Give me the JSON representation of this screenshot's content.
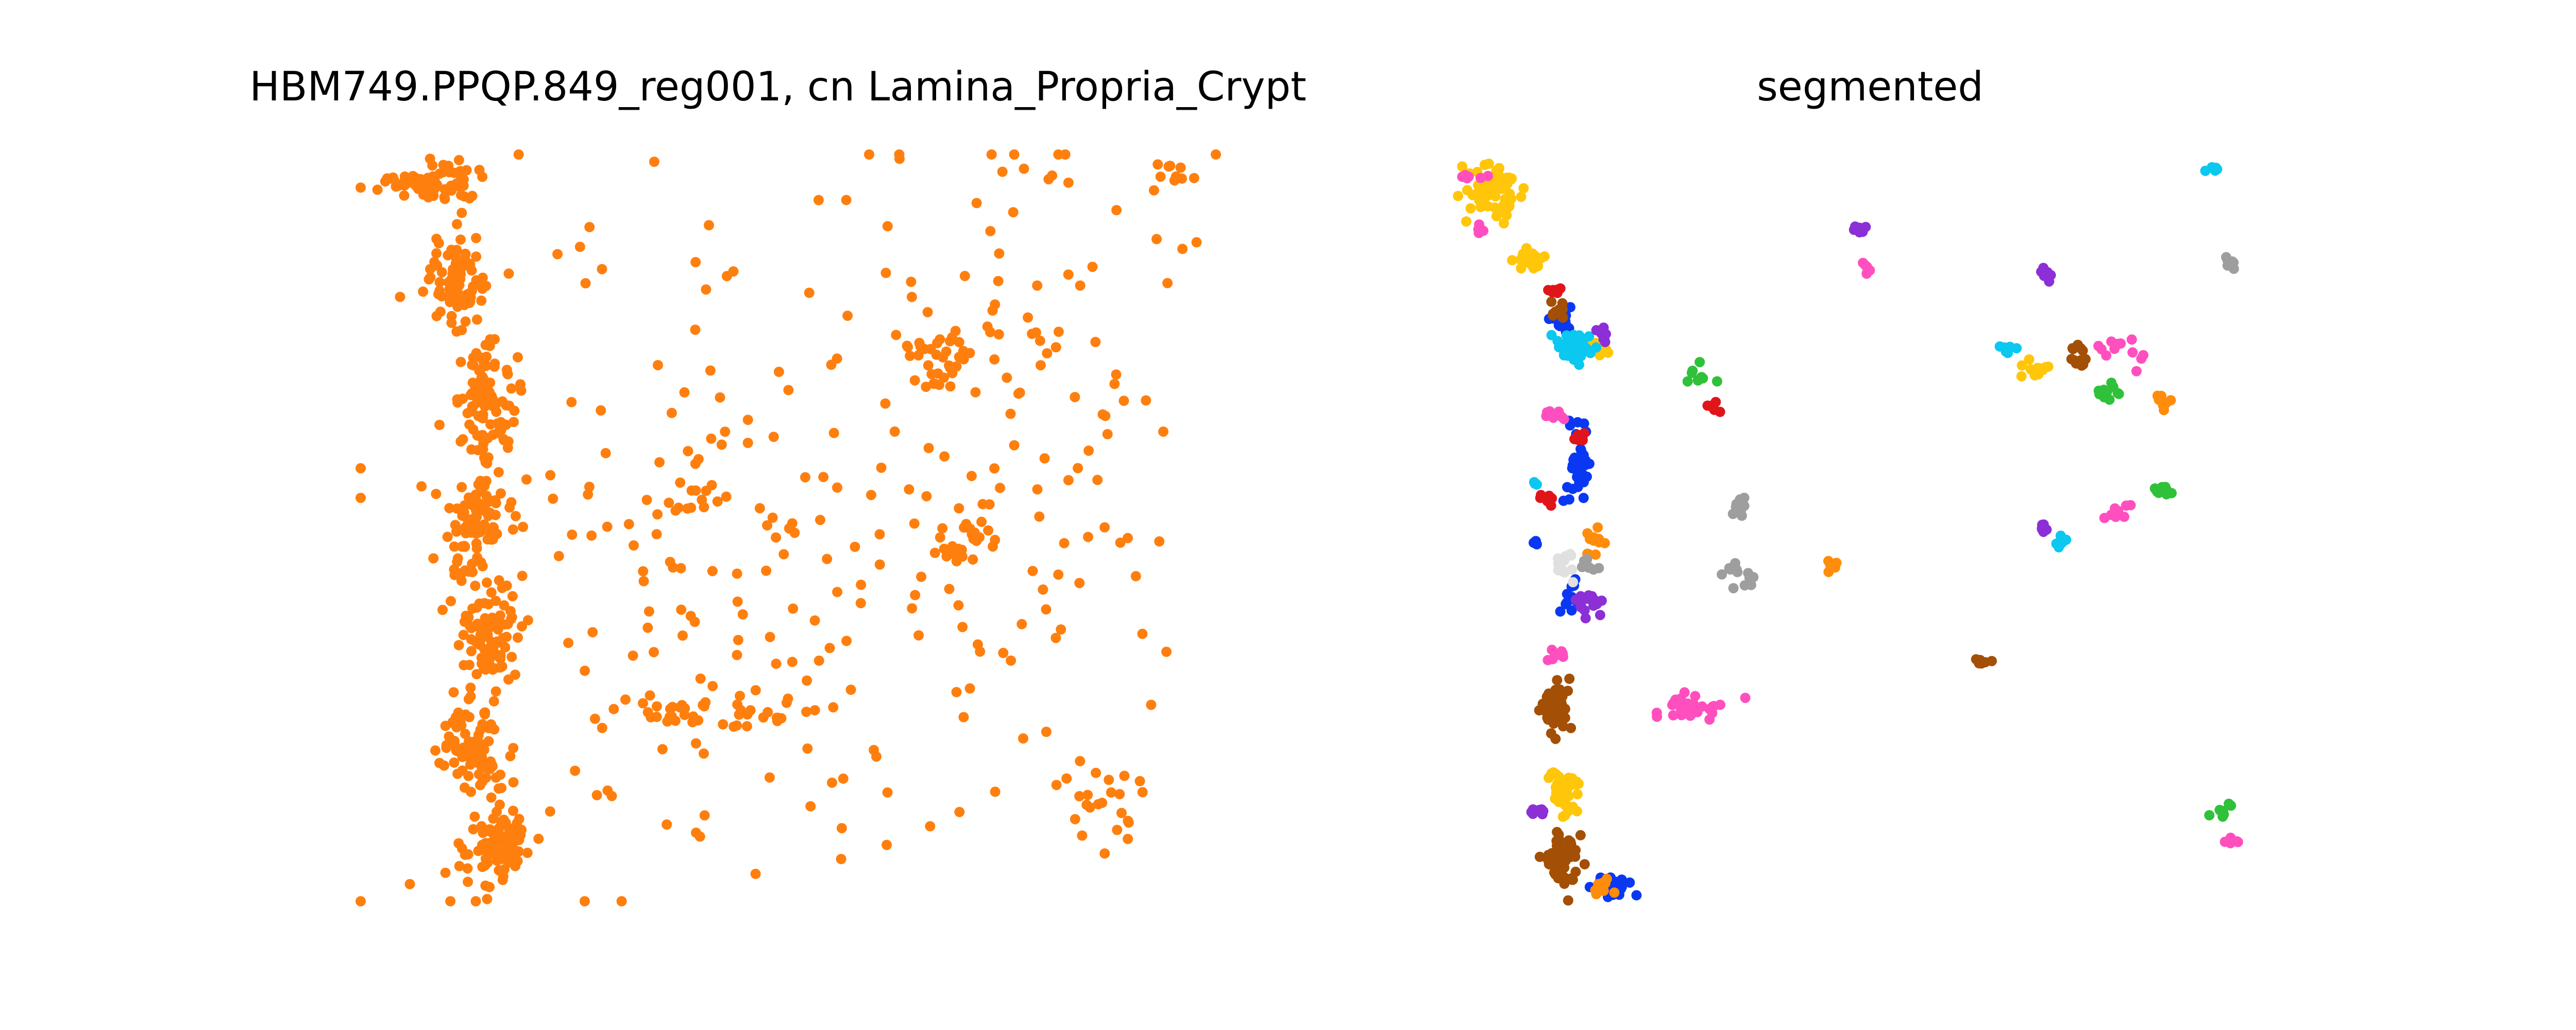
{
  "chart_data": [
    {
      "type": "scatter",
      "title": "HBM749.PPQP.849_reg001, cn Lamina_Propria_Crypt",
      "xlabel": "",
      "ylabel": "",
      "axes_visible": false,
      "point_color": "#ff7f0e",
      "clusters": [
        {
          "center": [
            0.08,
            0.04
          ],
          "spread": [
            0.04,
            0.02
          ],
          "n": 90
        },
        {
          "center": [
            0.11,
            0.17
          ],
          "spread": [
            0.03,
            0.05
          ],
          "n": 80
        },
        {
          "center": [
            0.15,
            0.33
          ],
          "spread": [
            0.03,
            0.06
          ],
          "n": 90
        },
        {
          "center": [
            0.14,
            0.5
          ],
          "spread": [
            0.03,
            0.06
          ],
          "n": 90
        },
        {
          "center": [
            0.15,
            0.64
          ],
          "spread": [
            0.03,
            0.06
          ],
          "n": 80
        },
        {
          "center": [
            0.13,
            0.8
          ],
          "spread": [
            0.03,
            0.06
          ],
          "n": 90
        },
        {
          "center": [
            0.16,
            0.93
          ],
          "spread": [
            0.035,
            0.04
          ],
          "n": 90
        },
        {
          "center": [
            0.38,
            0.46
          ],
          "spread": [
            0.03,
            0.025
          ],
          "n": 14
        },
        {
          "center": [
            0.41,
            0.75
          ],
          "spread": [
            0.12,
            0.02
          ],
          "n": 40
        },
        {
          "center": [
            0.68,
            0.27
          ],
          "spread": [
            0.05,
            0.04
          ],
          "n": 30
        },
        {
          "center": [
            0.71,
            0.52
          ],
          "spread": [
            0.03,
            0.03
          ],
          "n": 22
        },
        {
          "center": [
            0.87,
            0.86
          ],
          "spread": [
            0.05,
            0.04
          ],
          "n": 24
        },
        {
          "center": [
            0.42,
            0.5
          ],
          "spread": [
            0.3,
            0.42
          ],
          "n": 190
        },
        {
          "center": [
            0.78,
            0.35
          ],
          "spread": [
            0.16,
            0.35
          ],
          "n": 110
        },
        {
          "center": [
            0.95,
            0.03
          ],
          "spread": [
            0.04,
            0.02
          ],
          "n": 10
        }
      ]
    },
    {
      "type": "scatter",
      "title": "segmented",
      "xlabel": "",
      "ylabel": "",
      "axes_visible": false,
      "clusters": [
        {
          "center": [
            0.05,
            0.05
          ],
          "spread": [
            0.03,
            0.03
          ],
          "n": 60,
          "color": "#ffc60a"
        },
        {
          "center": [
            0.09,
            0.14
          ],
          "spread": [
            0.02,
            0.01
          ],
          "n": 25,
          "color": "#ffc60a"
        },
        {
          "center": [
            0.17,
            0.26
          ],
          "spread": [
            0.012,
            0.01
          ],
          "n": 12,
          "color": "#ffc60a"
        },
        {
          "center": [
            0.13,
            0.23
          ],
          "spread": [
            0.012,
            0.012
          ],
          "n": 14,
          "color": "#0a38f2"
        },
        {
          "center": [
            0.15,
            0.41
          ],
          "spread": [
            0.012,
            0.05
          ],
          "n": 40,
          "color": "#0a38f2"
        },
        {
          "center": [
            0.14,
            0.6
          ],
          "spread": [
            0.012,
            0.02
          ],
          "n": 12,
          "color": "#0a38f2"
        },
        {
          "center": [
            0.19,
            0.98
          ],
          "spread": [
            0.015,
            0.012
          ],
          "n": 30,
          "color": "#0a38f2"
        },
        {
          "center": [
            0.14,
            0.26
          ],
          "spread": [
            0.02,
            0.02
          ],
          "n": 40,
          "color": "#0ac8f0"
        },
        {
          "center": [
            0.13,
            0.85
          ],
          "spread": [
            0.015,
            0.03
          ],
          "n": 45,
          "color": "#ffc60a"
        },
        {
          "center": [
            0.12,
            0.74
          ],
          "spread": [
            0.015,
            0.03
          ],
          "n": 50,
          "color": "#a34f05"
        },
        {
          "center": [
            0.13,
            0.94
          ],
          "spread": [
            0.018,
            0.03
          ],
          "n": 60,
          "color": "#a34f05"
        },
        {
          "center": [
            0.12,
            0.21
          ],
          "spread": [
            0.012,
            0.01
          ],
          "n": 10,
          "color": "#a34f05"
        },
        {
          "center": [
            0.13,
            0.55
          ],
          "spread": [
            0.015,
            0.015
          ],
          "n": 14,
          "color": "#e0e0e0"
        },
        {
          "center": [
            0.17,
            0.52
          ],
          "spread": [
            0.012,
            0.015
          ],
          "n": 14,
          "color": "#ff8c0a"
        },
        {
          "center": [
            0.18,
            0.98
          ],
          "spread": [
            0.012,
            0.008
          ],
          "n": 10,
          "color": "#ff8c0a"
        },
        {
          "center": [
            0.11,
            0.46
          ],
          "spread": [
            0.01,
            0.008
          ],
          "n": 8,
          "color": "#e0151a"
        },
        {
          "center": [
            0.15,
            0.38
          ],
          "spread": [
            0.008,
            0.008
          ],
          "n": 6,
          "color": "#e0151a"
        },
        {
          "center": [
            0.12,
            0.18
          ],
          "spread": [
            0.008,
            0.006
          ],
          "n": 6,
          "color": "#e0151a"
        },
        {
          "center": [
            0.31,
            0.34
          ],
          "spread": [
            0.008,
            0.008
          ],
          "n": 6,
          "color": "#e0151a"
        },
        {
          "center": [
            0.16,
            0.6
          ],
          "spread": [
            0.015,
            0.02
          ],
          "n": 16,
          "color": "#8c2fd6"
        },
        {
          "center": [
            0.18,
            0.24
          ],
          "spread": [
            0.006,
            0.012
          ],
          "n": 8,
          "color": "#8c2fd6"
        },
        {
          "center": [
            0.1,
            0.88
          ],
          "spread": [
            0.01,
            0.006
          ],
          "n": 8,
          "color": "#8c2fd6"
        },
        {
          "center": [
            0.02,
            0.03
          ],
          "spread": [
            0.012,
            0.006
          ],
          "n": 8,
          "color": "#ff4fbf"
        },
        {
          "center": [
            0.03,
            0.1
          ],
          "spread": [
            0.008,
            0.006
          ],
          "n": 6,
          "color": "#ff4fbf"
        },
        {
          "center": [
            0.12,
            0.35
          ],
          "spread": [
            0.01,
            0.008
          ],
          "n": 8,
          "color": "#ff4fbf"
        },
        {
          "center": [
            0.12,
            0.67
          ],
          "spread": [
            0.01,
            0.008
          ],
          "n": 8,
          "color": "#ff4fbf"
        },
        {
          "center": [
            0.28,
            0.74
          ],
          "spread": [
            0.04,
            0.015
          ],
          "n": 30,
          "color": "#ff4fbf"
        },
        {
          "center": [
            0.29,
            0.3
          ],
          "spread": [
            0.01,
            0.01
          ],
          "n": 8,
          "color": "#2fc13a"
        },
        {
          "center": [
            0.34,
            0.47
          ],
          "spread": [
            0.01,
            0.01
          ],
          "n": 12,
          "color": "#9e9e9e"
        },
        {
          "center": [
            0.34,
            0.56
          ],
          "spread": [
            0.015,
            0.015
          ],
          "n": 12,
          "color": "#9e9e9e"
        },
        {
          "center": [
            0.16,
            0.55
          ],
          "spread": [
            0.008,
            0.008
          ],
          "n": 8,
          "color": "#9e9e9e"
        },
        {
          "center": [
            0.48,
            0.1
          ],
          "spread": [
            0.01,
            0.006
          ],
          "n": 8,
          "color": "#8c2fd6"
        },
        {
          "center": [
            0.49,
            0.15
          ],
          "spread": [
            0.006,
            0.008
          ],
          "n": 6,
          "color": "#ff4fbf"
        },
        {
          "center": [
            0.45,
            0.55
          ],
          "spread": [
            0.006,
            0.006
          ],
          "n": 6,
          "color": "#ff8c0a"
        },
        {
          "center": [
            0.62,
            0.68
          ],
          "spread": [
            0.008,
            0.005
          ],
          "n": 6,
          "color": "#a34f05"
        },
        {
          "center": [
            0.7,
            0.16
          ],
          "spread": [
            0.008,
            0.008
          ],
          "n": 8,
          "color": "#8c2fd6"
        },
        {
          "center": [
            0.66,
            0.26
          ],
          "spread": [
            0.01,
            0.006
          ],
          "n": 8,
          "color": "#0ac8f0"
        },
        {
          "center": [
            0.69,
            0.29
          ],
          "spread": [
            0.025,
            0.008
          ],
          "n": 14,
          "color": "#ffc60a"
        },
        {
          "center": [
            0.74,
            0.27
          ],
          "spread": [
            0.012,
            0.012
          ],
          "n": 12,
          "color": "#a34f05"
        },
        {
          "center": [
            0.79,
            0.26
          ],
          "spread": [
            0.02,
            0.02
          ],
          "n": 12,
          "color": "#ff4fbf"
        },
        {
          "center": [
            0.78,
            0.32
          ],
          "spread": [
            0.015,
            0.01
          ],
          "n": 10,
          "color": "#2fc13a"
        },
        {
          "center": [
            0.84,
            0.33
          ],
          "spread": [
            0.008,
            0.01
          ],
          "n": 8,
          "color": "#ff8c0a"
        },
        {
          "center": [
            0.84,
            0.45
          ],
          "spread": [
            0.01,
            0.008
          ],
          "n": 10,
          "color": "#2fc13a"
        },
        {
          "center": [
            0.7,
            0.5
          ],
          "spread": [
            0.008,
            0.008
          ],
          "n": 8,
          "color": "#8c2fd6"
        },
        {
          "center": [
            0.72,
            0.52
          ],
          "spread": [
            0.006,
            0.008
          ],
          "n": 6,
          "color": "#0ac8f0"
        },
        {
          "center": [
            0.79,
            0.48
          ],
          "spread": [
            0.015,
            0.01
          ],
          "n": 8,
          "color": "#ff4fbf"
        },
        {
          "center": [
            0.9,
            0.02
          ],
          "spread": [
            0.008,
            0.004
          ],
          "n": 6,
          "color": "#0ac8f0"
        },
        {
          "center": [
            0.92,
            0.14
          ],
          "spread": [
            0.008,
            0.008
          ],
          "n": 6,
          "color": "#9e9e9e"
        },
        {
          "center": [
            0.91,
            0.88
          ],
          "spread": [
            0.01,
            0.006
          ],
          "n": 8,
          "color": "#2fc13a"
        },
        {
          "center": [
            0.92,
            0.92
          ],
          "spread": [
            0.008,
            0.005
          ],
          "n": 6,
          "color": "#ff4fbf"
        },
        {
          "center": [
            0.1,
            0.44
          ],
          "spread": [
            0.004,
            0.004
          ],
          "n": 3,
          "color": "#0ac8f0"
        },
        {
          "center": [
            0.1,
            0.52
          ],
          "spread": [
            0.005,
            0.005
          ],
          "n": 4,
          "color": "#0a38f2"
        }
      ]
    }
  ]
}
